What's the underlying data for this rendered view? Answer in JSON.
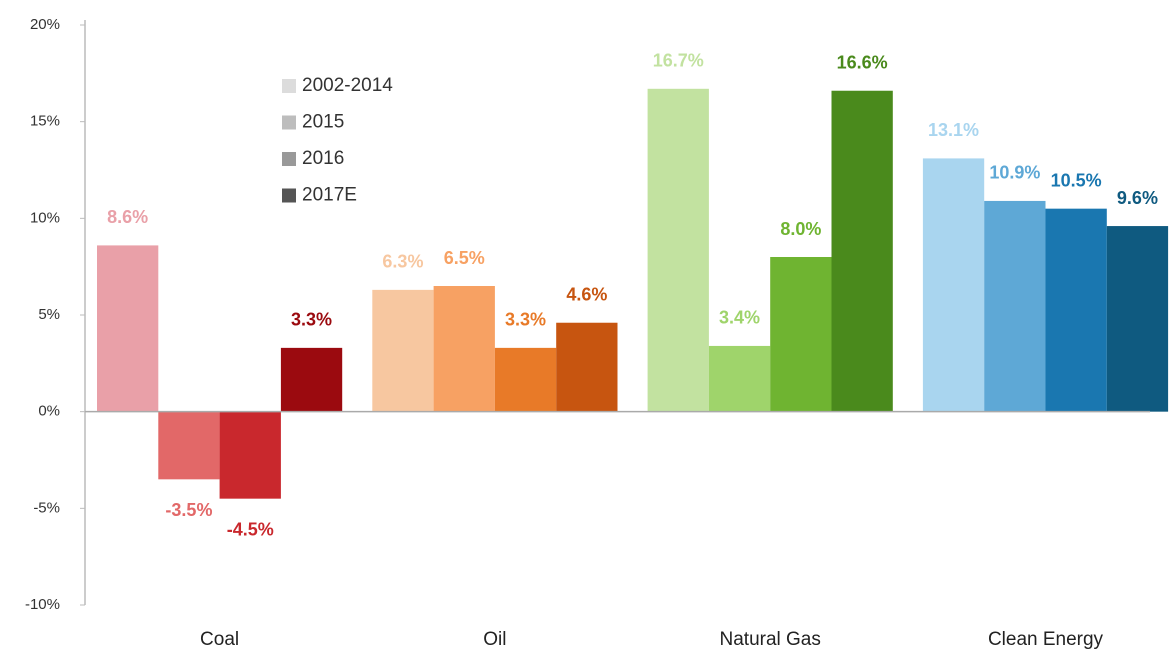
{
  "chart_data": {
    "type": "bar",
    "categories": [
      "Coal",
      "Oil",
      "Natural Gas",
      "Clean Energy"
    ],
    "series": [
      {
        "name": "2002-2014",
        "color": "#dcdcdc",
        "colors": [
          "#e9a0a8",
          "#f7c7a0",
          "#c2e2a0",
          "#a9d5ef"
        ],
        "values": [
          8.6,
          6.3,
          16.7,
          13.1
        ],
        "value_labels": [
          "8.6%",
          "6.3%",
          "16.7%",
          "13.1%"
        ]
      },
      {
        "name": "2015",
        "color": "#bdbdbd",
        "colors": [
          "#e26868",
          "#f7a163",
          "#9fd46b",
          "#5ea8d6"
        ],
        "values": [
          -3.5,
          6.5,
          3.4,
          10.9
        ],
        "value_labels": [
          "-3.5%",
          "6.5%",
          "3.4%",
          "10.9%"
        ]
      },
      {
        "name": "2016",
        "color": "#999999",
        "colors": [
          "#c9282d",
          "#e87a28",
          "#6fb431",
          "#1a77b0"
        ],
        "values": [
          -4.5,
          3.3,
          8.0,
          10.5
        ],
        "value_labels": [
          "-4.5%",
          "3.3%",
          "8.0%",
          "10.5%"
        ]
      },
      {
        "name": "2017E",
        "color": "#555555",
        "colors": [
          "#9b0a0f",
          "#c75510",
          "#4a8a1c",
          "#0f5a80"
        ],
        "values": [
          3.3,
          4.6,
          16.6,
          9.6
        ],
        "value_labels": [
          "3.3%",
          "4.6%",
          "16.6%",
          "9.6%"
        ]
      }
    ],
    "ylim": [
      -10,
      20
    ],
    "yticks": [
      {
        "value": -10,
        "label": "-10%"
      },
      {
        "value": -5,
        "label": "-5%"
      },
      {
        "value": 0,
        "label": "0%"
      },
      {
        "value": 5,
        "label": "5%"
      },
      {
        "value": 10,
        "label": "10%"
      },
      {
        "value": 15,
        "label": "15%"
      },
      {
        "value": 20,
        "label": "20%"
      }
    ],
    "grid": false,
    "legend": "upper-left"
  }
}
